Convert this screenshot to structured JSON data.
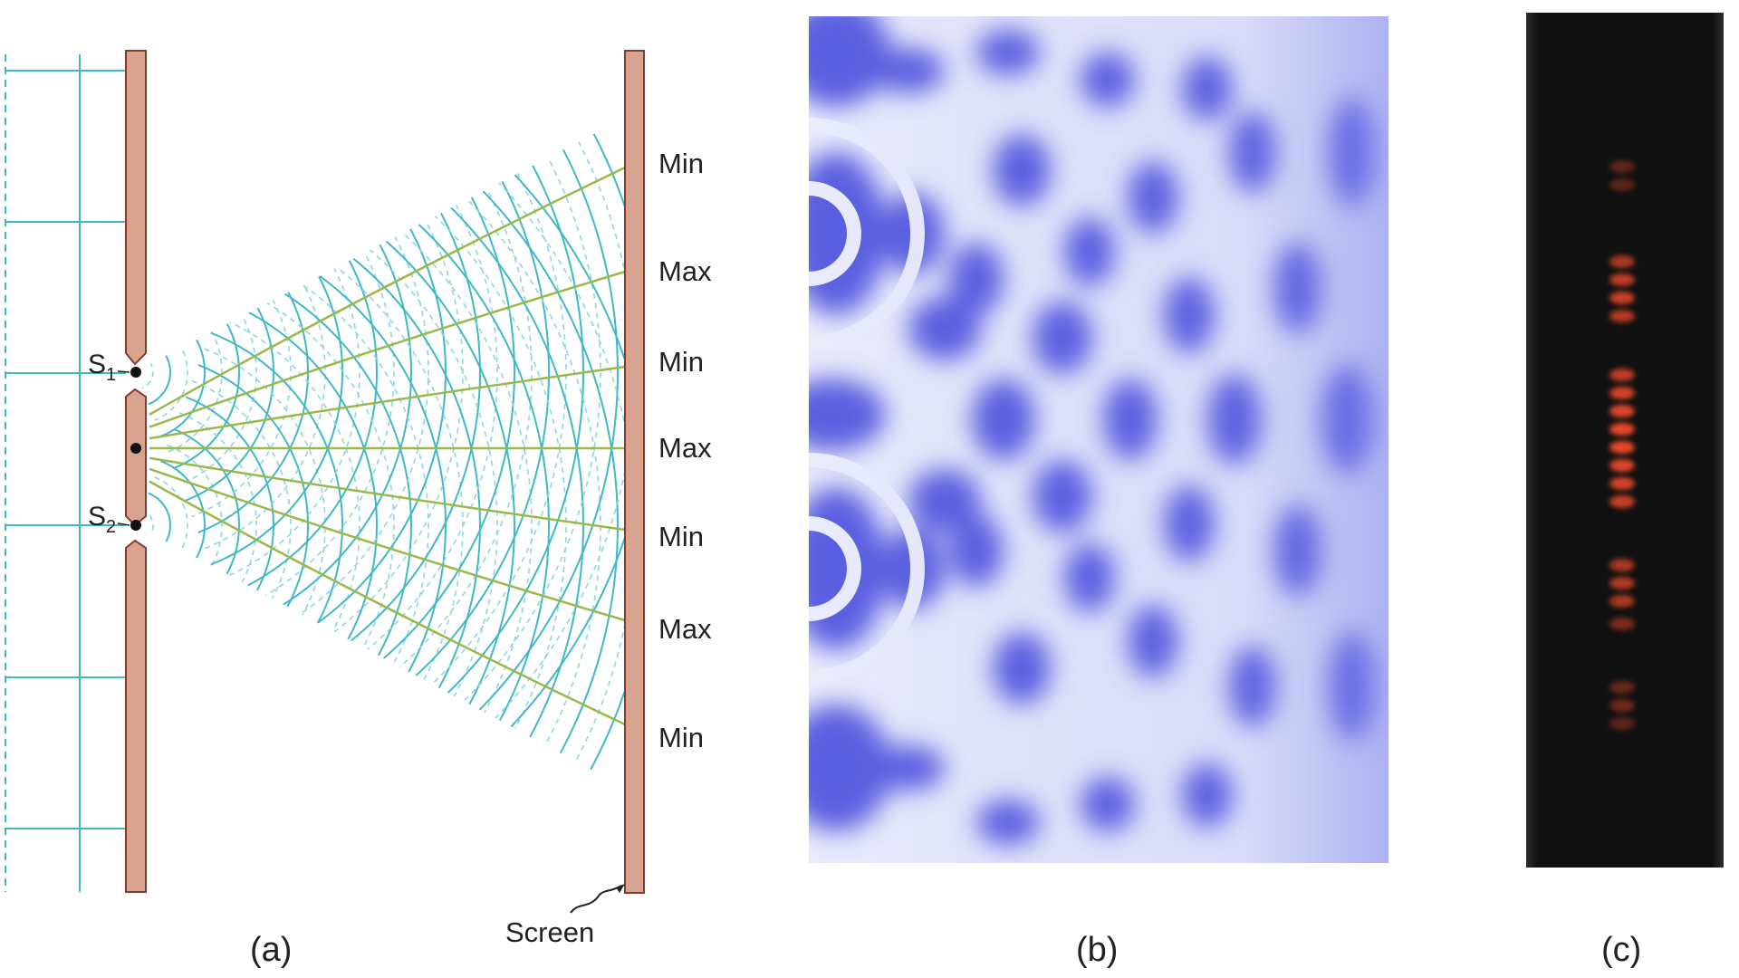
{
  "panel_a": {
    "sources": [
      {
        "letter": "S",
        "subscript": "1"
      },
      {
        "letter": "S",
        "subscript": "2"
      }
    ],
    "screen_labels": [
      "Min",
      "Max",
      "Min",
      "Max",
      "Min",
      "Max",
      "Min"
    ],
    "screen_caption": "Screen",
    "caption": "(a)"
  },
  "panel_b": {
    "caption": "(b)"
  },
  "panel_c": {
    "caption": "(c)"
  },
  "colors": {
    "barrier": "#d9a48f",
    "barrier_stroke": "#8a3a2a",
    "wave_crest": "#3fb8c9",
    "wave_trough": "#7fd0dc",
    "nodal_line": "#9ab84a",
    "pattern_blue": "#5a5ee0",
    "laser_red": "#e8482a"
  }
}
